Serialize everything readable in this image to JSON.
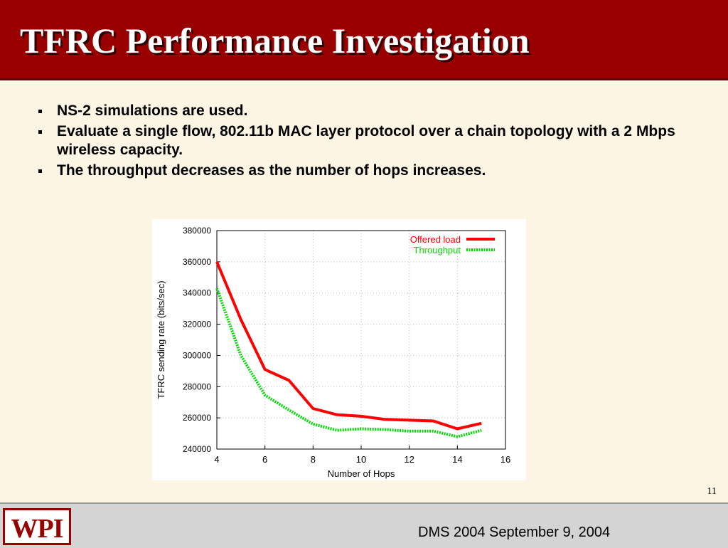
{
  "slide": {
    "title": "TFRC Performance Investigation",
    "bullets": [
      "NS-2 simulations are used.",
      "Evaluate a single flow, 802.11b MAC layer protocol over a chain topology with a 2 Mbps wireless capacity.",
      "The throughput decreases as the number of hops increases."
    ],
    "page_number": "11",
    "footer_text": "DMS 2004 September 9, 2004",
    "logo_text": "WPI"
  },
  "colors": {
    "title_bar": "#990000",
    "background": "#fdf5e4",
    "offered_load": "#ff0000",
    "throughput": "#00dd00"
  },
  "chart_data": {
    "type": "line",
    "title": "",
    "xlabel": "Number of Hops",
    "ylabel": "TFRC sending rate (bits/sec)",
    "xlim": [
      4,
      16
    ],
    "ylim": [
      240000,
      380000
    ],
    "xticks": [
      4,
      6,
      8,
      10,
      12,
      14,
      16
    ],
    "yticks": [
      240000,
      260000,
      280000,
      300000,
      320000,
      340000,
      360000,
      380000
    ],
    "grid": true,
    "legend_position": "top-right",
    "x": [
      4,
      5,
      6,
      7,
      8,
      9,
      10,
      11,
      12,
      13,
      14,
      15
    ],
    "series": [
      {
        "name": "Offered load",
        "color": "#ff0000",
        "style": "solid",
        "values": [
          360000,
          323000,
          291000,
          284000,
          266000,
          262000,
          261000,
          259000,
          258500,
          258000,
          253000,
          256500
        ]
      },
      {
        "name": "Throughput",
        "color": "#00dd00",
        "style": "dotted",
        "values": [
          343000,
          300000,
          274500,
          265000,
          256000,
          252000,
          253000,
          252500,
          251500,
          251500,
          248000,
          252000
        ]
      }
    ]
  }
}
